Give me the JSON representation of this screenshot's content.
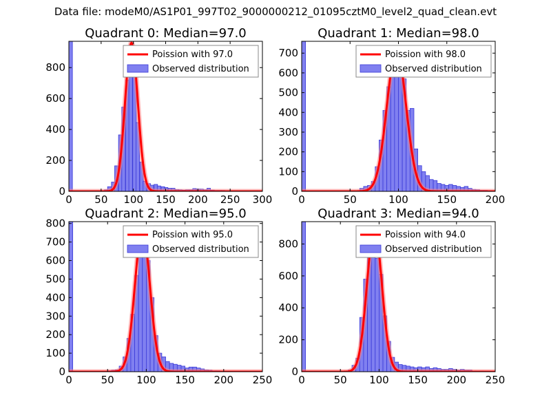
{
  "suptitle": "Data file: modeM0/AS1P01_997T02_9000000212_01095cztM0_level2_quad_clean.evt",
  "colors": {
    "hist_fill": "#8080f0",
    "hist_edge": "#3a3ad8",
    "poisson_line": "#ff0000",
    "poisson_halo": "#ff8080",
    "axes": "#000000",
    "legend_edge": "#888888"
  },
  "chart_data": [
    {
      "type": "bar",
      "title": "Quadrant 0: Median=97.0",
      "xlim": [
        0,
        300
      ],
      "ylim": [
        0,
        970
      ],
      "xticks": [
        0,
        50,
        100,
        150,
        200,
        250,
        300
      ],
      "yticks": [
        0,
        200,
        400,
        600,
        800
      ],
      "legend": {
        "location": "top-right",
        "line_label": "Poission with 97.0",
        "bar_label": "Observed distribution"
      },
      "poisson": {
        "mean": 97.0,
        "peak": 960
      },
      "bar_width": 5.5,
      "bars": [
        {
          "x": 0,
          "v": 970
        },
        {
          "x": 55,
          "v": 10
        },
        {
          "x": 60,
          "v": 30
        },
        {
          "x": 66,
          "v": 60
        },
        {
          "x": 71,
          "v": 165
        },
        {
          "x": 77,
          "v": 365
        },
        {
          "x": 82,
          "v": 545
        },
        {
          "x": 88,
          "v": 720
        },
        {
          "x": 93,
          "v": 850
        },
        {
          "x": 99,
          "v": 740
        },
        {
          "x": 104,
          "v": 445
        },
        {
          "x": 110,
          "v": 190
        },
        {
          "x": 115,
          "v": 65
        },
        {
          "x": 121,
          "v": 50
        },
        {
          "x": 126,
          "v": 40
        },
        {
          "x": 132,
          "v": 45
        },
        {
          "x": 137,
          "v": 35
        },
        {
          "x": 143,
          "v": 30
        },
        {
          "x": 148,
          "v": 25
        },
        {
          "x": 154,
          "v": 20
        },
        {
          "x": 159,
          "v": 20
        },
        {
          "x": 165,
          "v": 12
        },
        {
          "x": 170,
          "v": 10
        },
        {
          "x": 176,
          "v": 8
        },
        {
          "x": 181,
          "v": 10
        },
        {
          "x": 187,
          "v": 10
        },
        {
          "x": 192,
          "v": 18
        },
        {
          "x": 198,
          "v": 15
        },
        {
          "x": 203,
          "v": 15
        },
        {
          "x": 209,
          "v": 10
        },
        {
          "x": 214,
          "v": 20
        },
        {
          "x": 220,
          "v": 8
        },
        {
          "x": 225,
          "v": 6
        },
        {
          "x": 231,
          "v": 6
        },
        {
          "x": 236,
          "v": 6
        },
        {
          "x": 242,
          "v": 5
        },
        {
          "x": 247,
          "v": 4
        },
        {
          "x": 253,
          "v": 4
        },
        {
          "x": 258,
          "v": 3
        },
        {
          "x": 264,
          "v": 3
        }
      ]
    },
    {
      "type": "bar",
      "title": "Quadrant 1: Median=98.0",
      "xlim": [
        0,
        200
      ],
      "ylim": [
        0,
        760
      ],
      "xticks": [
        0,
        50,
        100,
        150,
        200
      ],
      "yticks": [
        0,
        100,
        200,
        300,
        400,
        500,
        600,
        700
      ],
      "legend": {
        "location": "top-right",
        "line_label": "Poission with 98.0",
        "bar_label": "Observed distribution"
      },
      "poisson": {
        "mean": 98.0,
        "peak": 720
      },
      "bar_width": 4,
      "bars": [
        {
          "x": 0,
          "v": 760
        },
        {
          "x": 60,
          "v": 15
        },
        {
          "x": 64,
          "v": 25
        },
        {
          "x": 68,
          "v": 30
        },
        {
          "x": 72,
          "v": 50
        },
        {
          "x": 76,
          "v": 125
        },
        {
          "x": 80,
          "v": 260
        },
        {
          "x": 84,
          "v": 410
        },
        {
          "x": 88,
          "v": 530
        },
        {
          "x": 92,
          "v": 675
        },
        {
          "x": 96,
          "v": 650
        },
        {
          "x": 100,
          "v": 610
        },
        {
          "x": 104,
          "v": 570
        },
        {
          "x": 108,
          "v": 410
        },
        {
          "x": 112,
          "v": 420
        },
        {
          "x": 116,
          "v": 215
        },
        {
          "x": 120,
          "v": 130
        },
        {
          "x": 124,
          "v": 100
        },
        {
          "x": 128,
          "v": 80
        },
        {
          "x": 132,
          "v": 60
        },
        {
          "x": 136,
          "v": 55
        },
        {
          "x": 140,
          "v": 40
        },
        {
          "x": 144,
          "v": 35
        },
        {
          "x": 148,
          "v": 30
        },
        {
          "x": 152,
          "v": 35
        },
        {
          "x": 156,
          "v": 30
        },
        {
          "x": 160,
          "v": 25
        },
        {
          "x": 164,
          "v": 20
        },
        {
          "x": 168,
          "v": 25
        },
        {
          "x": 172,
          "v": 15
        },
        {
          "x": 176,
          "v": 10
        },
        {
          "x": 180,
          "v": 8
        },
        {
          "x": 184,
          "v": 5
        },
        {
          "x": 188,
          "v": 5
        },
        {
          "x": 192,
          "v": 3
        }
      ]
    },
    {
      "type": "bar",
      "title": "Quadrant 2: Median=95.0",
      "xlim": [
        0,
        250
      ],
      "ylim": [
        0,
        810
      ],
      "xticks": [
        0,
        50,
        100,
        150,
        200,
        250
      ],
      "yticks": [
        0,
        100,
        200,
        300,
        400,
        500,
        600,
        700,
        800
      ],
      "legend": {
        "location": "top-right",
        "line_label": "Poission with 95.0",
        "bar_label": "Observed distribution"
      },
      "poisson": {
        "mean": 95.0,
        "peak": 770
      },
      "bar_width": 5,
      "bars": [
        {
          "x": 0,
          "v": 810
        },
        {
          "x": 50,
          "v": 5
        },
        {
          "x": 55,
          "v": 8
        },
        {
          "x": 60,
          "v": 10
        },
        {
          "x": 65,
          "v": 30
        },
        {
          "x": 70,
          "v": 80
        },
        {
          "x": 75,
          "v": 180
        },
        {
          "x": 80,
          "v": 310
        },
        {
          "x": 85,
          "v": 520
        },
        {
          "x": 90,
          "v": 700
        },
        {
          "x": 95,
          "v": 710
        },
        {
          "x": 100,
          "v": 600
        },
        {
          "x": 105,
          "v": 400
        },
        {
          "x": 110,
          "v": 195
        },
        {
          "x": 115,
          "v": 100
        },
        {
          "x": 120,
          "v": 80
        },
        {
          "x": 125,
          "v": 55
        },
        {
          "x": 130,
          "v": 45
        },
        {
          "x": 135,
          "v": 40
        },
        {
          "x": 140,
          "v": 35
        },
        {
          "x": 145,
          "v": 30
        },
        {
          "x": 150,
          "v": 20
        },
        {
          "x": 155,
          "v": 25
        },
        {
          "x": 160,
          "v": 25
        },
        {
          "x": 165,
          "v": 20
        },
        {
          "x": 170,
          "v": 15
        },
        {
          "x": 175,
          "v": 10
        },
        {
          "x": 180,
          "v": 8
        },
        {
          "x": 185,
          "v": 5
        },
        {
          "x": 190,
          "v": 5
        }
      ]
    },
    {
      "type": "bar",
      "title": "Quadrant 3: Median=94.0",
      "xlim": [
        0,
        250
      ],
      "ylim": [
        0,
        940
      ],
      "xticks": [
        0,
        50,
        100,
        150,
        200,
        250
      ],
      "yticks": [
        0,
        200,
        400,
        600,
        800
      ],
      "legend": {
        "location": "top-right",
        "line_label": "Poission with 94.0",
        "bar_label": "Observed distribution"
      },
      "poisson": {
        "mean": 94.0,
        "peak": 900
      },
      "bar_width": 5,
      "bars": [
        {
          "x": 0,
          "v": 940
        },
        {
          "x": 60,
          "v": 10
        },
        {
          "x": 65,
          "v": 40
        },
        {
          "x": 70,
          "v": 85
        },
        {
          "x": 75,
          "v": 340
        },
        {
          "x": 80,
          "v": 580
        },
        {
          "x": 85,
          "v": 760
        },
        {
          "x": 90,
          "v": 820
        },
        {
          "x": 95,
          "v": 710
        },
        {
          "x": 100,
          "v": 610
        },
        {
          "x": 105,
          "v": 350
        },
        {
          "x": 110,
          "v": 190
        },
        {
          "x": 115,
          "v": 90
        },
        {
          "x": 120,
          "v": 60
        },
        {
          "x": 125,
          "v": 45
        },
        {
          "x": 130,
          "v": 40
        },
        {
          "x": 135,
          "v": 35
        },
        {
          "x": 140,
          "v": 30
        },
        {
          "x": 145,
          "v": 25
        },
        {
          "x": 150,
          "v": 30
        },
        {
          "x": 155,
          "v": 25
        },
        {
          "x": 160,
          "v": 30
        },
        {
          "x": 165,
          "v": 20
        },
        {
          "x": 170,
          "v": 25
        },
        {
          "x": 175,
          "v": 20
        },
        {
          "x": 180,
          "v": 15
        },
        {
          "x": 185,
          "v": 15
        },
        {
          "x": 190,
          "v": 20
        },
        {
          "x": 195,
          "v": 15
        },
        {
          "x": 200,
          "v": 10
        },
        {
          "x": 205,
          "v": 15
        },
        {
          "x": 210,
          "v": 10
        },
        {
          "x": 215,
          "v": 10
        },
        {
          "x": 220,
          "v": 5
        },
        {
          "x": 225,
          "v": 5
        },
        {
          "x": 230,
          "v": 5
        }
      ]
    }
  ]
}
